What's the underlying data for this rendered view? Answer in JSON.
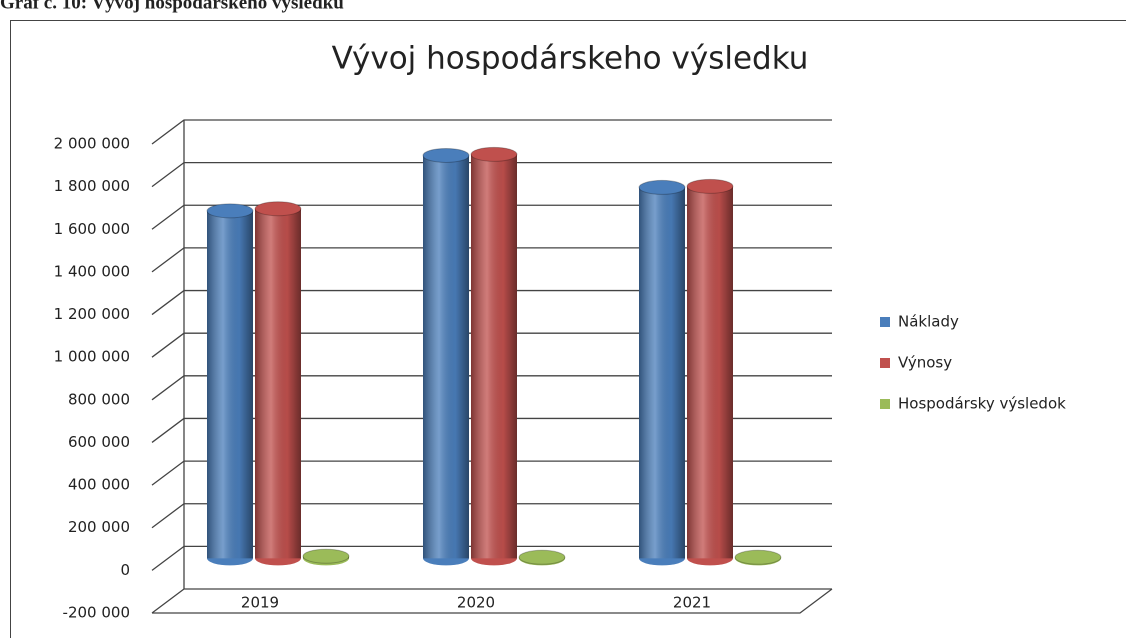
{
  "caption": "Graf č. 10: Vývoj hospodárskeho výsledku",
  "chart_data": {
    "type": "bar3d",
    "title": "Vývoj hospodárskeho výsledku",
    "categories": [
      "2019",
      "2020",
      "2021"
    ],
    "series": [
      {
        "name": "Náklady",
        "color": "#4a7ebb",
        "values": [
          1630000,
          1890000,
          1740000
        ]
      },
      {
        "name": "Výnosy",
        "color": "#c0504d",
        "values": [
          1640000,
          1895000,
          1745000
        ]
      },
      {
        "name": "Hospodársky výsledok",
        "color": "#9bbb59",
        "values": [
          10000,
          5000,
          5000
        ]
      }
    ],
    "ylim": [
      -200000,
      2000000
    ],
    "yticks": [
      {
        "value": -200000,
        "label": "-200 000"
      },
      0,
      {
        "value": 200000,
        "label": "200 000"
      },
      {
        "value": 400000,
        "label": "400 000"
      },
      {
        "value": 600000,
        "label": "600 000"
      },
      {
        "value": 800000,
        "label": "800 000"
      },
      {
        "value": 1000000,
        "label": "1 000 000"
      },
      {
        "value": 1200000,
        "label": "1 200 000"
      },
      {
        "value": 1400000,
        "label": "1 400 000"
      },
      {
        "value": 1600000,
        "label": "1 600 000"
      },
      {
        "value": 1800000,
        "label": "1 800 000"
      },
      {
        "value": 2000000,
        "label": "2 000 000"
      }
    ],
    "grid": true,
    "legend": "right"
  }
}
